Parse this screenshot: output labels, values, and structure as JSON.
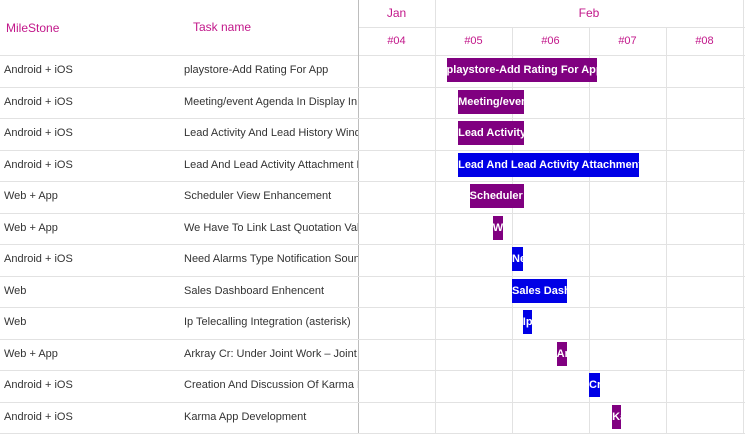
{
  "columns": {
    "milestone": "MileStone",
    "task": "Task name"
  },
  "chart_data": {
    "type": "gantt",
    "months": [
      {
        "label": "Jan",
        "weeks": 1
      },
      {
        "label": "Feb",
        "weeks": 4
      }
    ],
    "weeks": [
      "#04",
      "#05",
      "#06",
      "#07",
      "#08"
    ],
    "colors": {
      "purple": "#800080",
      "blue": "#0000e6"
    },
    "tasks": [
      {
        "milestone": "Android + iOS",
        "name": "playstore-Add Rating For App",
        "start_week": 5.15,
        "end_week": 7.1,
        "color": "purple"
      },
      {
        "milestone": "Android + iOS",
        "name": "Meeting/event Agenda In Display In Dashboard",
        "start_week": 5.3,
        "end_week": 6.15,
        "color": "purple"
      },
      {
        "milestone": "Android + iOS",
        "name": "Lead Activity And Lead History Window",
        "start_week": 5.3,
        "end_week": 6.15,
        "color": "purple"
      },
      {
        "milestone": "Android + iOS",
        "name": "Lead And Lead Activity Attachment Required",
        "start_week": 5.3,
        "end_week": 7.65,
        "color": "blue"
      },
      {
        "milestone": "Web + App",
        "name": "Scheduler View Enhancement",
        "start_week": 5.45,
        "end_week": 6.15,
        "color": "purple"
      },
      {
        "milestone": "Web + App",
        "name": "We Have To Link Last Quotation Value",
        "start_week": 5.75,
        "end_week": 5.88,
        "color": "purple"
      },
      {
        "milestone": "Android + iOS",
        "name": "Need Alarms Type Notification Sound",
        "start_week": 6.0,
        "end_week": 6.14,
        "color": "blue"
      },
      {
        "milestone": "Web",
        "name": "Sales Dashboard Enhencent",
        "start_week": 6.0,
        "end_week": 6.71,
        "color": "blue"
      },
      {
        "milestone": "Web",
        "name": "Ip Telecalling Integration (asterisk)",
        "start_week": 6.14,
        "end_week": 6.26,
        "color": "blue"
      },
      {
        "milestone": "Web + App",
        "name": "Arkray Cr: Under Joint Work – Joint Work",
        "start_week": 6.58,
        "end_week": 6.71,
        "color": "purple"
      },
      {
        "milestone": "Android + iOS",
        "name": "Creation And Discussion Of Karma Points",
        "start_week": 7.0,
        "end_week": 7.14,
        "color": "blue"
      },
      {
        "milestone": "Android + iOS",
        "name": "Karma App Development",
        "start_week": 7.3,
        "end_week": 7.42,
        "color": "purple"
      }
    ]
  }
}
